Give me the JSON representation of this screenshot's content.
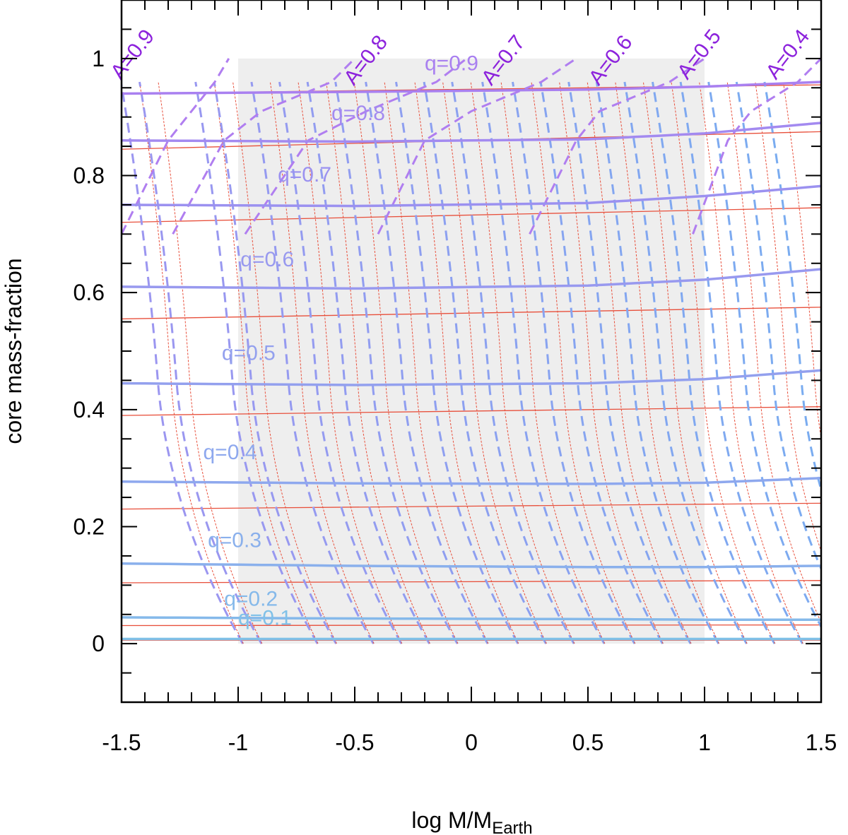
{
  "chart_data": {
    "type": "line",
    "title": "",
    "xlabel": "log M/M",
    "xlabel_subscript": "Earth",
    "ylabel": "core mass-fraction",
    "xlim": [
      -1.5,
      1.5
    ],
    "ylim": [
      -0.1,
      1.1
    ],
    "x_ticks": [
      {
        "value": -1.5,
        "label": "-1.5"
      },
      {
        "value": -1,
        "label": "-1"
      },
      {
        "value": -0.5,
        "label": "-0.5"
      },
      {
        "value": 0,
        "label": "0"
      },
      {
        "value": 0.5,
        "label": "0.5"
      },
      {
        "value": 1,
        "label": "1"
      },
      {
        "value": 1.5,
        "label": "1.5"
      }
    ],
    "y_ticks": [
      {
        "value": 0,
        "label": "0"
      },
      {
        "value": 0.2,
        "label": "0.2"
      },
      {
        "value": 0.4,
        "label": "0.4"
      },
      {
        "value": 0.6,
        "label": "0.6"
      },
      {
        "value": 0.8,
        "label": "0.8"
      },
      {
        "value": 1,
        "label": "1"
      }
    ],
    "shaded_region": {
      "x": [
        -1,
        1
      ],
      "y": [
        0,
        1
      ],
      "color": "#eeeeee"
    },
    "q_series": [
      {
        "name": "q=0.9",
        "color": "#a980f0",
        "x": [
          -1.5,
          -0.5,
          0.5,
          1.0,
          1.5
        ],
        "y": [
          0.94,
          0.943,
          0.947,
          0.952,
          0.96
        ],
        "label_at": [
          -0.2,
          0.98
        ]
      },
      {
        "name": "q=0.8",
        "color": "#a38af0",
        "x": [
          -1.5,
          -0.5,
          0.5,
          1.0,
          1.5
        ],
        "y": [
          0.86,
          0.858,
          0.862,
          0.872,
          0.89
        ],
        "label_at": [
          -0.6,
          0.895
        ]
      },
      {
        "name": "q=0.7",
        "color": "#9b91f0",
        "x": [
          -1.5,
          -0.5,
          0.5,
          1.0,
          1.5
        ],
        "y": [
          0.75,
          0.748,
          0.753,
          0.765,
          0.782
        ],
        "label_at": [
          -0.83,
          0.79
        ]
      },
      {
        "name": "q=0.6",
        "color": "#9899ef",
        "x": [
          -1.5,
          -0.5,
          0.5,
          1.0,
          1.5
        ],
        "y": [
          0.61,
          0.607,
          0.612,
          0.622,
          0.64
        ],
        "label_at": [
          -0.99,
          0.645
        ]
      },
      {
        "name": "q=0.5",
        "color": "#93a0ee",
        "x": [
          -1.5,
          -0.5,
          0.5,
          1.0,
          1.5
        ],
        "y": [
          0.445,
          0.442,
          0.445,
          0.452,
          0.467
        ],
        "label_at": [
          -1.07,
          0.485
        ]
      },
      {
        "name": "q=0.4",
        "color": "#8ea8ee",
        "x": [
          -1.5,
          -0.5,
          0.5,
          1.0,
          1.5
        ],
        "y": [
          0.277,
          0.274,
          0.273,
          0.275,
          0.283
        ],
        "label_at": [
          -1.15,
          0.315
        ]
      },
      {
        "name": "q=0.3",
        "color": "#8ab0ec",
        "x": [
          -1.5,
          -0.5,
          0.5,
          1.0,
          1.5
        ],
        "y": [
          0.137,
          0.133,
          0.131,
          0.131,
          0.133
        ],
        "label_at": [
          -1.13,
          0.165
        ]
      },
      {
        "name": "q=0.2",
        "color": "#85b9ea",
        "x": [
          -1.5,
          -0.5,
          0.5,
          1.0,
          1.5
        ],
        "y": [
          0.045,
          0.043,
          0.042,
          0.041,
          0.041
        ],
        "label_at": [
          -1.06,
          0.065
        ]
      },
      {
        "name": "q=0.1",
        "color": "#80c1e8",
        "x": [
          -1.5,
          -0.5,
          0.5,
          1.0,
          1.5
        ],
        "y": [
          0.008,
          0.008,
          0.008,
          0.008,
          0.008
        ],
        "label_at": [
          -1.0,
          0.032
        ]
      }
    ],
    "red_series": {
      "color": "#e8503c",
      "y": [
        0.94,
        0.845,
        0.72,
        0.555,
        0.39,
        0.23,
        0.104,
        0.031,
        0.006
      ],
      "y_right": [
        0.955,
        0.875,
        0.745,
        0.575,
        0.405,
        0.24,
        0.108,
        0.032,
        0.006
      ]
    },
    "a_series": [
      {
        "name": "A=0.9",
        "color": "#8c22dc",
        "x": [
          -1.5,
          -1.3,
          -1.2,
          -1.1,
          -1.04
        ],
        "label_at": [
          -1.43,
          1.0
        ]
      },
      {
        "name": "A=0.8",
        "color": "#8c22dc",
        "x": [
          -1.28,
          -1.06,
          -0.9,
          -0.6,
          -0.5
        ],
        "label_at": [
          -0.43,
          0.99
        ]
      },
      {
        "name": "A=0.7",
        "color": "#8c22dc",
        "x": [
          -0.97,
          -0.7,
          -0.45,
          -0.15,
          -0.02
        ],
        "label_at": [
          0.16,
          0.99
        ]
      },
      {
        "name": "A=0.6",
        "color": "#8c22dc",
        "x": [
          -0.4,
          -0.2,
          0.0,
          0.3,
          0.45
        ],
        "label_at": [
          0.62,
          0.99
        ]
      },
      {
        "name": "A=0.5",
        "color": "#8c22dc",
        "x": [
          0.25,
          0.45,
          0.55,
          0.85,
          1.0
        ],
        "label_at": [
          1.0,
          1.0
        ]
      },
      {
        "name": "A=0.4",
        "color": "#8c22dc",
        "x": [
          0.95,
          1.1,
          1.2,
          1.4,
          1.5
        ],
        "label_at": [
          1.38,
          1.0
        ]
      }
    ],
    "dashed_family_x": [
      -1.3,
      -1.22,
      -0.98,
      -0.9,
      -0.74,
      -0.62,
      -0.5,
      -0.38,
      -0.25,
      -0.12,
      0.0,
      0.12,
      0.25,
      0.38,
      0.5,
      0.62,
      0.74,
      0.86,
      0.98,
      1.1,
      1.22,
      1.34,
      1.46
    ]
  }
}
